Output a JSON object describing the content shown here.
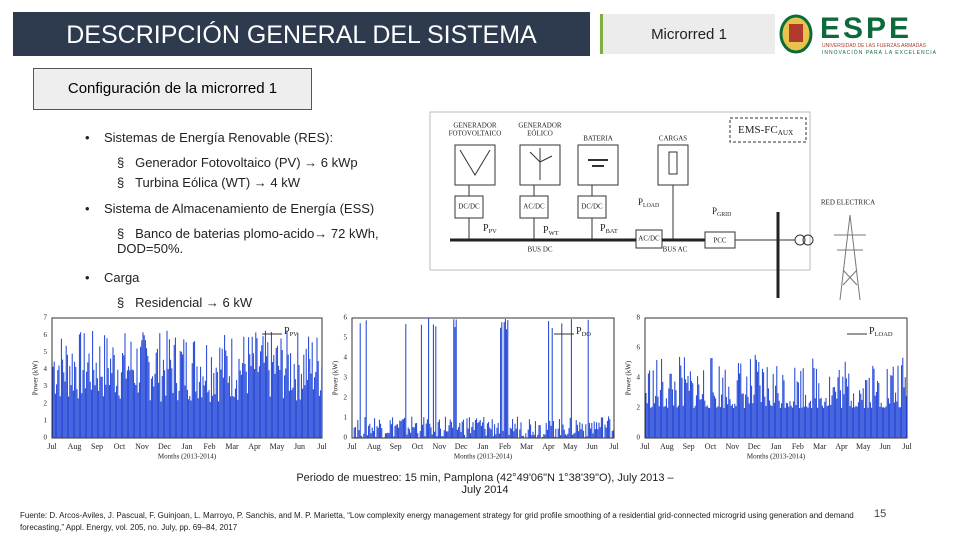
{
  "header": {
    "title": "DESCRIPCIÓN GENERAL DEL SISTEMA",
    "tag": "Microrred 1",
    "logo": "ESPE",
    "logo_subtitle": "UNIVERSIDAD DE LAS FUERZAS ARMADAS",
    "logo_tagline": "INNOVACIÓN PARA LA EXCELENCIA"
  },
  "section": "Configuración de la microrred 1",
  "bullets": [
    {
      "text": "Sistemas de Energía Renovable (RES):",
      "items": [
        "Generador Fotovoltaico (PV) → 6 kWp",
        "Turbina Eólica (WT) → 4 kW"
      ]
    },
    {
      "text": "Sistema de Almacenamiento de Energía (ESS)",
      "items": [
        "Banco de baterias plomo-acido→ 72 kWh, DOD=50%."
      ]
    },
    {
      "text": "Carga",
      "items": [
        "Residencial → 6 kW"
      ]
    }
  ],
  "diagram": {
    "pv_label": [
      "GENERADOR",
      "FOTOVOLTAICO"
    ],
    "wt_label": [
      "GENERADOR",
      "EÓLICO"
    ],
    "battery_label": "BATERIA",
    "load_label": "CARGAS",
    "ems": {
      "main": "EMS-FC",
      "sub": "AUX"
    },
    "converters": [
      "DC/DC",
      "AC/DC",
      "DC/DC",
      "AC/DC"
    ],
    "flows": [
      {
        "main": "P",
        "sub": "PV"
      },
      {
        "main": "P",
        "sub": "WT"
      },
      {
        "main": "P",
        "sub": "BAT"
      },
      {
        "main": "P",
        "sub": "LOAD"
      },
      {
        "main": "P",
        "sub": "GRID"
      }
    ],
    "bus_dc": "BUS DC",
    "bus_ac": "BUS AC",
    "pcc": "PCC",
    "grid": "RED ELECTRICA"
  },
  "plots": [
    {
      "ylabel": "Power (kW)",
      "legend": {
        "main": "P",
        "sub": "PV"
      },
      "yticks": [
        "0",
        "1",
        "2",
        "3",
        "4",
        "5",
        "6",
        "7"
      ],
      "xticks": [
        "Jul",
        "Aug",
        "Sep",
        "Oct",
        "Nov",
        "Dec",
        "Jan",
        "Feb",
        "Mar",
        "Apr",
        "May",
        "Jun",
        "Jul"
      ],
      "xlabel": "Months (2013-2014)"
    },
    {
      "ylabel": "Power (kW)",
      "legend": {
        "main": "P",
        "sub": "DO"
      },
      "yticks": [
        "0",
        "1",
        "2",
        "3",
        "4",
        "5",
        "6"
      ],
      "xticks": [
        "Jul",
        "Aug",
        "Sep",
        "Oct",
        "Nov",
        "Dec",
        "Jan",
        "Feb",
        "Mar",
        "Apr",
        "May",
        "Jun",
        "Jul"
      ],
      "xlabel": "Months (2013-2014)"
    },
    {
      "ylabel": "Power (kW)",
      "legend": {
        "main": "P",
        "sub": "LOAD"
      },
      "yticks": [
        "0",
        "2",
        "4",
        "6",
        "8"
      ],
      "xticks": [
        "Jul",
        "Aug",
        "Sep",
        "Oct",
        "Nov",
        "Dec",
        "Jan",
        "Feb",
        "Mar",
        "Apr",
        "May",
        "Jun",
        "Jul"
      ],
      "xlabel": "Months (2013-2014)"
    }
  ],
  "caption": [
    "Periodo de muestreo: 15 min, Pamplona (42°49'06\"N 1°38'39\"O),  July 2013 –",
    "July 2014"
  ],
  "source": "Fuente: D. Arcos-Aviles, J. Pascual, F. Guinjoan, L. Marroyo, P. Sanchis, and M. P. Marietta, “Low complexity energy management strategy for grid profile smoothing of a residential grid-connected microgrid using generation and demand forecasting,” Appl. Energy, vol. 205, no. July, pp. 69–84, 2017",
  "page": "15"
}
